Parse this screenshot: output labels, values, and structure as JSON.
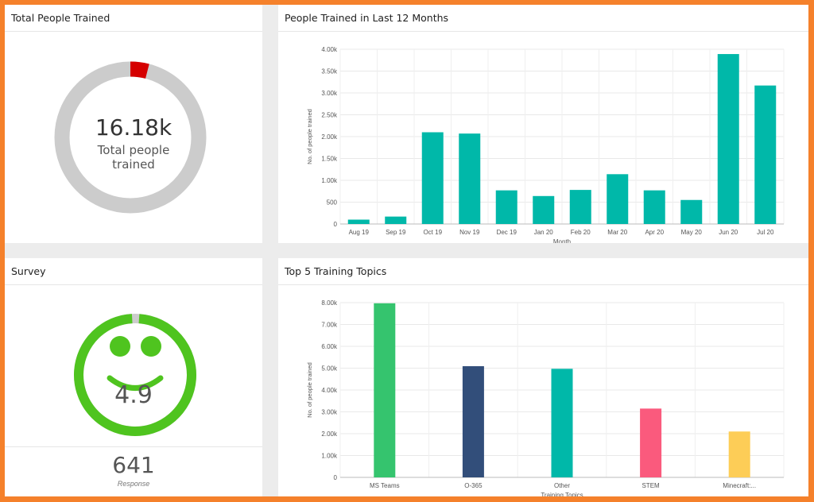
{
  "colors": {
    "frame": "#f5812b",
    "donut_track": "#cccccc",
    "donut_accent": "#d50000",
    "survey_green": "#4fc41f",
    "bar_teal": "#00b8a9",
    "topic_colors": [
      "#35c46e",
      "#324e7a",
      "#00b8a9",
      "#fa5a7d",
      "#fdcd57"
    ]
  },
  "total_panel": {
    "title": "Total People Trained",
    "value": "16.18k",
    "caption_line1": "Total people",
    "caption_line2": "trained",
    "accent_fraction": 0.04
  },
  "survey_panel": {
    "title": "Survey",
    "score": "4.9",
    "score_fraction": 0.98,
    "response_count": "641",
    "response_label": "Response",
    "icon": "smiley-face-icon"
  },
  "months_panel": {
    "title": "People Trained in Last 12 Months"
  },
  "topics_panel": {
    "title": "Top 5 Training Topics"
  },
  "chart_data": [
    {
      "type": "bar",
      "categories": [
        "Aug 19",
        "Sep 19",
        "Oct 19",
        "Nov 19",
        "Dec 19",
        "Jan 20",
        "Feb 20",
        "Mar 20",
        "Apr 20",
        "May 20",
        "Jun 20",
        "Jul 20"
      ],
      "values": [
        100,
        170,
        2100,
        2070,
        770,
        640,
        780,
        1140,
        770,
        550,
        3890,
        3170
      ],
      "xlabel": "Month",
      "ylabel": "No. of people trained",
      "yticks": [
        "0",
        "500",
        "1.00k",
        "1.50k",
        "2.00k",
        "2.50k",
        "3.00k",
        "3.50k",
        "4.00k"
      ],
      "ylim": [
        0,
        4000
      ],
      "grid": true
    },
    {
      "type": "bar",
      "categories": [
        "MS Teams",
        "O-365",
        "Other",
        "STEM",
        "Minecraft:..."
      ],
      "values": [
        7970,
        5090,
        4970,
        3150,
        2100
      ],
      "xlabel": "Training Topics",
      "ylabel": "No. of people trained",
      "yticks": [
        "0",
        "1.00k",
        "2.00k",
        "3.00k",
        "4.00k",
        "5.00k",
        "6.00k",
        "7.00k",
        "8.00k"
      ],
      "ylim": [
        0,
        8000
      ],
      "grid": true
    }
  ]
}
